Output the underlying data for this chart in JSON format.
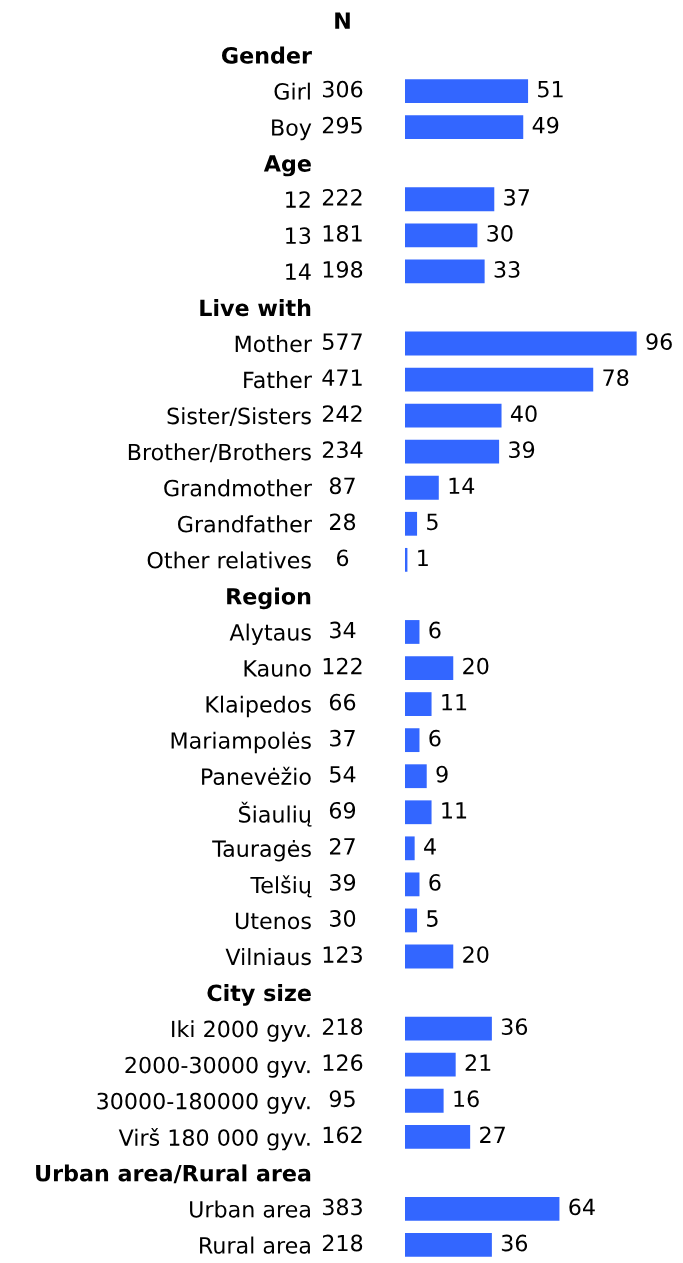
{
  "chart_data": {
    "type": "bar",
    "orientation": "horizontal",
    "data_labels": true,
    "color": "#3366ff",
    "categories": [
      "Gender",
      "Girl",
      "Boy",
      "Age",
      "12",
      "13",
      "14",
      "Live with",
      "Mother",
      "Father",
      "Sister/Sisters",
      "Brother/Brothers",
      "Grandmother",
      "Grandfather",
      "Other relatives",
      "Region",
      "Alytaus",
      "Kauno",
      "Klaipedos",
      "Mariampolės",
      "Panevėžio",
      "Šiaulių",
      "Tauragės",
      "Telšių",
      "Utenos",
      "Vilniaus",
      "City size",
      "Iki 2000 gyv.",
      "2000-30000 gyv.",
      "30000-180000 gyv.",
      "Virš 180 000 gyv.",
      "Urban area/Rural area",
      "Urban area",
      "Rural area"
    ],
    "values": [
      null,
      51,
      49,
      null,
      37,
      30,
      33,
      null,
      96,
      78,
      40,
      39,
      14,
      5,
      1,
      null,
      6,
      20,
      11,
      6,
      9,
      11,
      4,
      6,
      5,
      20,
      null,
      36,
      21,
      16,
      27,
      null,
      64,
      36
    ],
    "annotations": [
      "N",
      "306",
      "295",
      "222",
      "181",
      "198",
      "577",
      "471",
      "242",
      "234",
      "87",
      "28",
      "6",
      "34",
      "122",
      "66",
      "37",
      "54",
      "69",
      "27",
      "39",
      "30",
      "123",
      "218",
      "126",
      "95",
      "162",
      "383",
      "218"
    ]
  }
}
